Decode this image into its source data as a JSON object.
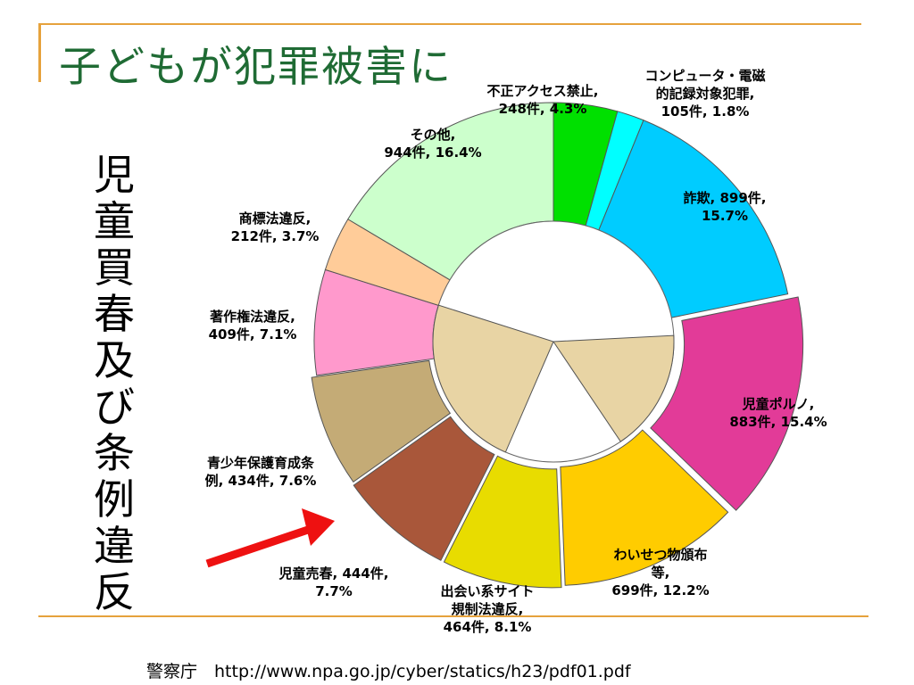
{
  "title": "子どもが犯罪被害に",
  "side_title": "児童買春及び条例違反",
  "source": "警察庁　http://www.npa.go.jp/cyber/statics/h23/pdf01.pdf",
  "chart_data": {
    "type": "pie",
    "style": "donut, exploded sectors, inner ring of child-prostitution subcategories",
    "slices": [
      {
        "lines": [
          "不正アクセス禁止,",
          "248件, 4.3%"
        ],
        "count": 248,
        "percent": 4.3,
        "color": "#00e000"
      },
      {
        "lines": [
          "コンピュータ・電磁",
          "的記録対象犯罪,",
          "105件, 1.8%"
        ],
        "count": 105,
        "percent": 1.8,
        "color": "#00ffff"
      },
      {
        "lines": [
          "詐欺, 899件,",
          "15.7%"
        ],
        "count": 899,
        "percent": 15.7,
        "color": "#00ccff"
      },
      {
        "lines": [
          "児童ポルノ,",
          "883件, 15.4%"
        ],
        "count": 883,
        "percent": 15.4,
        "color": "#e23b98"
      },
      {
        "lines": [
          "わいせつ物頒布",
          "等,",
          "699件, 12.2%"
        ],
        "count": 699,
        "percent": 12.2,
        "color": "#ffcc00"
      },
      {
        "lines": [
          "出会い系サイト",
          "規制法違反,",
          "464件, 8.1%"
        ],
        "count": 464,
        "percent": 8.1,
        "color": "#e8dc00"
      },
      {
        "lines": [
          "児童売春, 444件,",
          "7.7%"
        ],
        "count": 444,
        "percent": 7.7,
        "color": "#a9573a"
      },
      {
        "lines": [
          "青少年保護育成条",
          "例, 434件, 7.6%"
        ],
        "count": 434,
        "percent": 7.6,
        "color": "#c4ab76"
      },
      {
        "lines": [
          "著作権法違反,",
          "409件, 7.1%"
        ],
        "count": 409,
        "percent": 7.1,
        "color": "#ff99cc"
      },
      {
        "lines": [
          "商標法違反,",
          "212件, 3.7%"
        ],
        "count": 212,
        "percent": 3.7,
        "color": "#ffcc99"
      },
      {
        "lines": [
          "その他,",
          "944件, 16.4%"
        ],
        "count": 944,
        "percent": 16.4,
        "color": "#ccffcc"
      }
    ],
    "inner_color": "#e8d4a4",
    "arrow_color": "#ee1111"
  }
}
